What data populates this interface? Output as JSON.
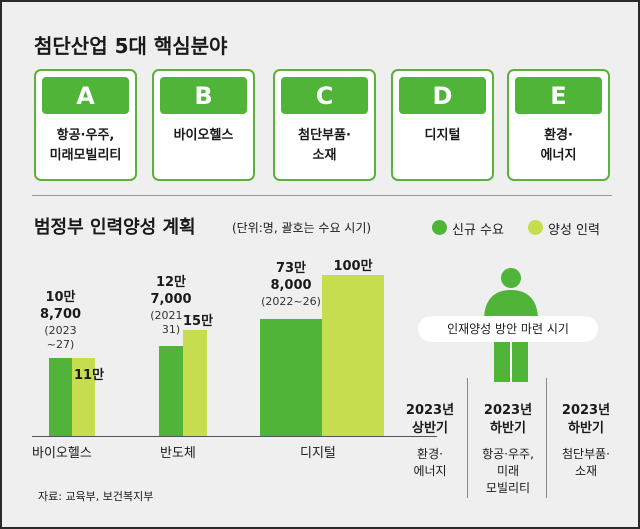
{
  "section1": {
    "title": "첨단산업 5대 핵심분야",
    "cards": [
      {
        "letter": "A",
        "line1": "항공·우주,",
        "line2": "미래모빌리티"
      },
      {
        "letter": "B",
        "line1": "바이오헬스",
        "line2": ""
      },
      {
        "letter": "C",
        "line1": "첨단부품·",
        "line2": "소재"
      },
      {
        "letter": "D",
        "line1": "디지털",
        "line2": ""
      },
      {
        "letter": "E",
        "line1": "환경·",
        "line2": "에너지"
      }
    ]
  },
  "section2": {
    "title": "범정부 인력양성 계획",
    "subtitle": "(단위:명, 괄호는 수요 시기)",
    "legend": {
      "new_demand": "신규 수요",
      "training": "양성 인력"
    }
  },
  "chart_data": {
    "type": "bar",
    "title": "범정부 인력양성 계획",
    "unit_note": "(단위:명, 괄호는 수요 시기)",
    "categories": [
      "바이오헬스",
      "반도체",
      "디지털"
    ],
    "series": [
      {
        "name": "신규 수요",
        "values": [
          108700,
          127000,
          738000
        ],
        "labels": [
          "10만\n8,700",
          "12만\n7,000",
          "73만\n8,000"
        ],
        "periods": [
          "(2023\n~27)",
          "(2021~\n31)",
          "(2022~26)"
        ]
      },
      {
        "name": "양성 인력",
        "values": [
          110000,
          150000,
          1000000
        ],
        "labels": [
          "11만",
          "15만",
          "100만"
        ]
      }
    ],
    "colors": {
      "new_demand": "#4fb438",
      "training": "#c5dd4f"
    }
  },
  "schedule": {
    "callout": "인재양성 방안 마련 시기",
    "columns": [
      {
        "period": "2023년\n상반기",
        "fields": "환경·\n에너지"
      },
      {
        "period": "2023년\n하반기",
        "fields": "항공·우주,\n미래\n모빌리티"
      },
      {
        "period": "2023년\n하반기",
        "fields": "첨단부품·\n소재"
      }
    ]
  },
  "source": "자료: 교육부, 보건복지부"
}
